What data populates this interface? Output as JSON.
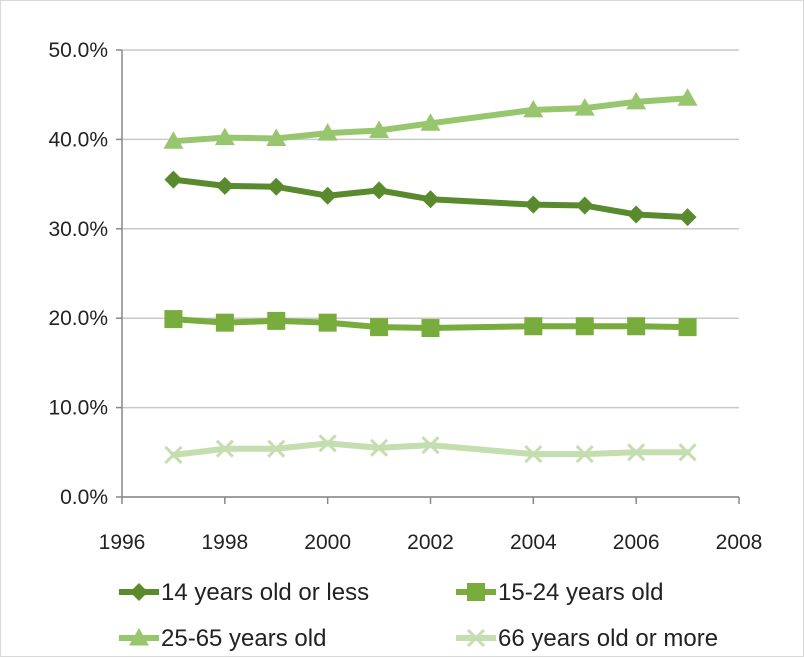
{
  "chart_data": {
    "type": "line",
    "title": "",
    "xlabel": "",
    "ylabel": "",
    "xlim": [
      1996,
      2008
    ],
    "ylim": [
      0,
      50
    ],
    "x_ticks": [
      1996,
      1998,
      2000,
      2002,
      2004,
      2006,
      2008
    ],
    "x_tick_labels": [
      "1996",
      "1998",
      "2000",
      "2002",
      "2004",
      "2006",
      "2008"
    ],
    "y_ticks": [
      0,
      10,
      20,
      30,
      40,
      50
    ],
    "y_tick_labels": [
      "0.0%",
      "10.0%",
      "20.0%",
      "30.0%",
      "40.0%",
      "50.0%"
    ],
    "grid": "horizontal",
    "legend_position": "bottom",
    "series": [
      {
        "name": "14 years old or less",
        "color": "#5a8a2e",
        "marker": "diamond",
        "x": [
          1997,
          1998,
          1999,
          2000,
          2001,
          2002,
          2004,
          2005,
          2006,
          2007
        ],
        "values": [
          35.5,
          34.8,
          34.7,
          33.7,
          34.3,
          33.3,
          32.7,
          32.6,
          31.6,
          31.3
        ]
      },
      {
        "name": "15-24 years old",
        "color": "#78ac3c",
        "marker": "square",
        "x": [
          1997,
          1998,
          1999,
          2000,
          2001,
          2002,
          2004,
          2005,
          2006,
          2007
        ],
        "values": [
          19.9,
          19.5,
          19.7,
          19.5,
          19.0,
          18.9,
          19.1,
          19.1,
          19.1,
          19.0
        ]
      },
      {
        "name": "25-65 years old",
        "color": "#98c66e",
        "marker": "triangle",
        "x": [
          1997,
          1998,
          1999,
          2000,
          2001,
          2002,
          2004,
          2005,
          2006,
          2007
        ],
        "values": [
          39.8,
          40.2,
          40.1,
          40.7,
          41.0,
          41.8,
          43.3,
          43.5,
          44.2,
          44.6
        ]
      },
      {
        "name": "66 years old or more",
        "color": "#c5deb0",
        "marker": "x",
        "x": [
          1997,
          1998,
          1999,
          2000,
          2001,
          2002,
          2004,
          2005,
          2006,
          2007
        ],
        "values": [
          4.7,
          5.4,
          5.4,
          6.0,
          5.5,
          5.8,
          4.8,
          4.8,
          5.0,
          5.0
        ]
      }
    ]
  }
}
